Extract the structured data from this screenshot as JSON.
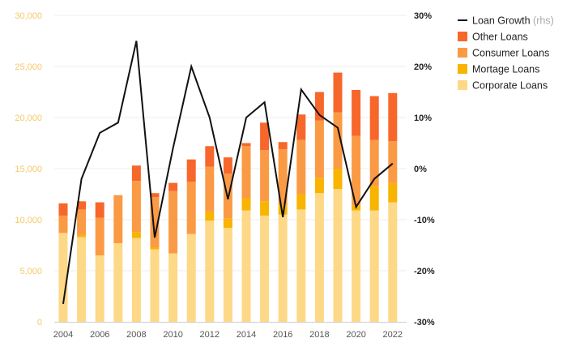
{
  "chart_data": {
    "type": "bar",
    "stacked": true,
    "x": [
      2004,
      2005,
      2006,
      2007,
      2008,
      2009,
      2010,
      2011,
      2012,
      2013,
      2014,
      2015,
      2016,
      2017,
      2018,
      2019,
      2020,
      2021,
      2022
    ],
    "x_tick_labels": [
      "2004",
      "2006",
      "2008",
      "2010",
      "2012",
      "2014",
      "2016",
      "2018",
      "2020",
      "2022"
    ],
    "y_left": {
      "ylim": [
        0,
        30000
      ],
      "ticks": [
        "0",
        "5,000",
        "10,000",
        "15,000",
        "20,000",
        "25,000",
        "30,000"
      ]
    },
    "y_right": {
      "ylim": [
        -30,
        30
      ],
      "ticks": [
        "-30%",
        "-20%",
        "-10%",
        "0%",
        "10%",
        "20%",
        "30%"
      ]
    },
    "grid": true,
    "legend_position": "top-right",
    "series": [
      {
        "name": "Corporate Loans",
        "color": "#fdd886",
        "values": [
          8700,
          8300,
          6500,
          7700,
          8200,
          7100,
          6700,
          8600,
          9900,
          9200,
          10900,
          10400,
          10500,
          11000,
          12600,
          13000,
          10900,
          10900,
          11700
        ]
      },
      {
        "name": "Mortage Loans",
        "color": "#f8b400",
        "values": [
          0,
          200,
          0,
          0,
          600,
          200,
          0,
          0,
          900,
          900,
          1200,
          1400,
          900,
          1500,
          1500,
          2000,
          500,
          2400,
          1900
        ]
      },
      {
        "name": "Consumer Loans",
        "color": "#fb9a45",
        "values": [
          1700,
          2500,
          3700,
          4700,
          5000,
          4900,
          6100,
          5100,
          4400,
          4400,
          5100,
          5000,
          5500,
          5300,
          5600,
          5500,
          6800,
          4500,
          4100
        ]
      },
      {
        "name": "Other Loans",
        "color": "#f7672b",
        "values": [
          1200,
          800,
          1500,
          0,
          1500,
          400,
          800,
          2200,
          2000,
          1600,
          300,
          2700,
          700,
          2500,
          2800,
          3900,
          4500,
          4300,
          4700
        ]
      }
    ],
    "line_series": {
      "name": "Loan Growth",
      "name_note": "(rhs)",
      "axis": "right",
      "color": "#111111",
      "values": [
        -26.5,
        -2,
        7,
        9,
        25,
        -13.5,
        4,
        20,
        10,
        -6,
        10,
        13,
        -9.5,
        15.5,
        10.5,
        8,
        -7.5,
        -2,
        1
      ]
    }
  }
}
